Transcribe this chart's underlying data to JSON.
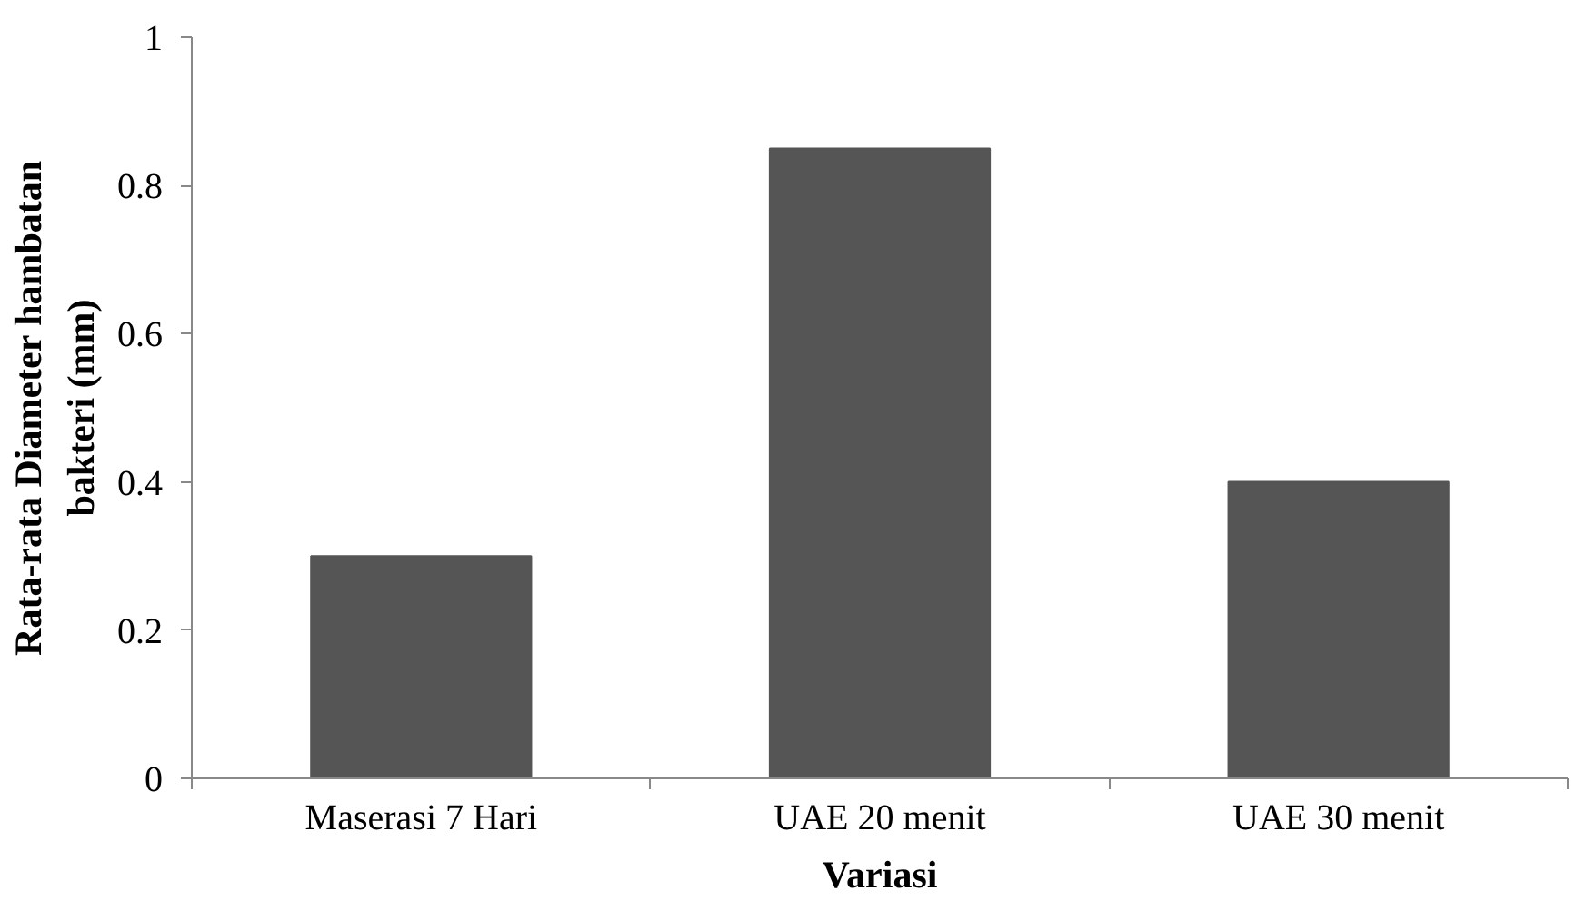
{
  "chart_data": {
    "type": "bar",
    "xlabel": "Variasi",
    "ylabel": "Rata-rata Diameter hambatan bakteri (mm)",
    "categories": [
      "Maserasi 7 Hari",
      "UAE 20 menit",
      "UAE 30 menit"
    ],
    "values": [
      0.3,
      0.85,
      0.4
    ],
    "color": "#555555",
    "ylim": [
      0,
      1
    ],
    "yticks": [
      0,
      0.2,
      0.4,
      0.6,
      0.8,
      1
    ],
    "grid": false
  }
}
